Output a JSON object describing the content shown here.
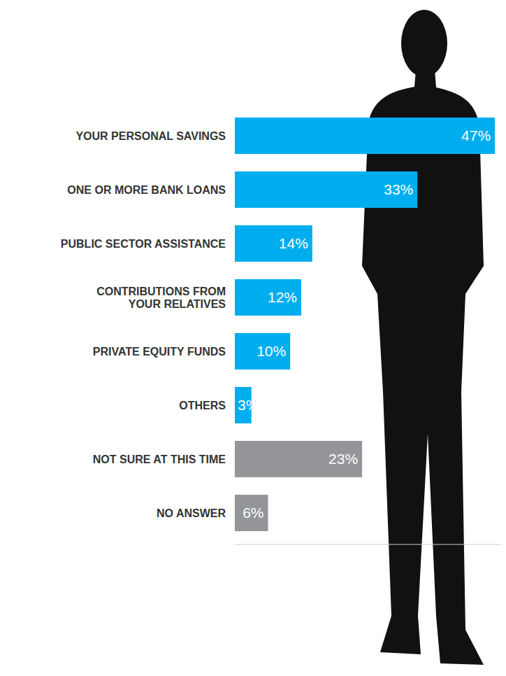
{
  "chart_data": {
    "type": "bar",
    "orientation": "horizontal",
    "categories": [
      "YOUR PERSONAL SAVINGS",
      "ONE OR MORE BANK LOANS",
      "PUBLIC SECTOR ASSISTANCE",
      "CONTRIBUTIONS FROM YOUR RELATIVES",
      "PRIVATE EQUITY FUNDS",
      "OTHERS",
      "NOT SURE AT THIS TIME",
      "NO ANSWER"
    ],
    "values": [
      47,
      33,
      14,
      12,
      10,
      3,
      23,
      6
    ],
    "value_labels": [
      "47%",
      "33%",
      "14%",
      "12%",
      "10%",
      "3%",
      "23%",
      "6%"
    ],
    "data_labels": true,
    "colors": [
      "#00aeef",
      "#00aeef",
      "#00aeef",
      "#00aeef",
      "#00aeef",
      "#00aeef",
      "#939598",
      "#939598"
    ],
    "xlim": [
      0,
      48
    ],
    "tick_labels": false,
    "grid": false
  }
}
